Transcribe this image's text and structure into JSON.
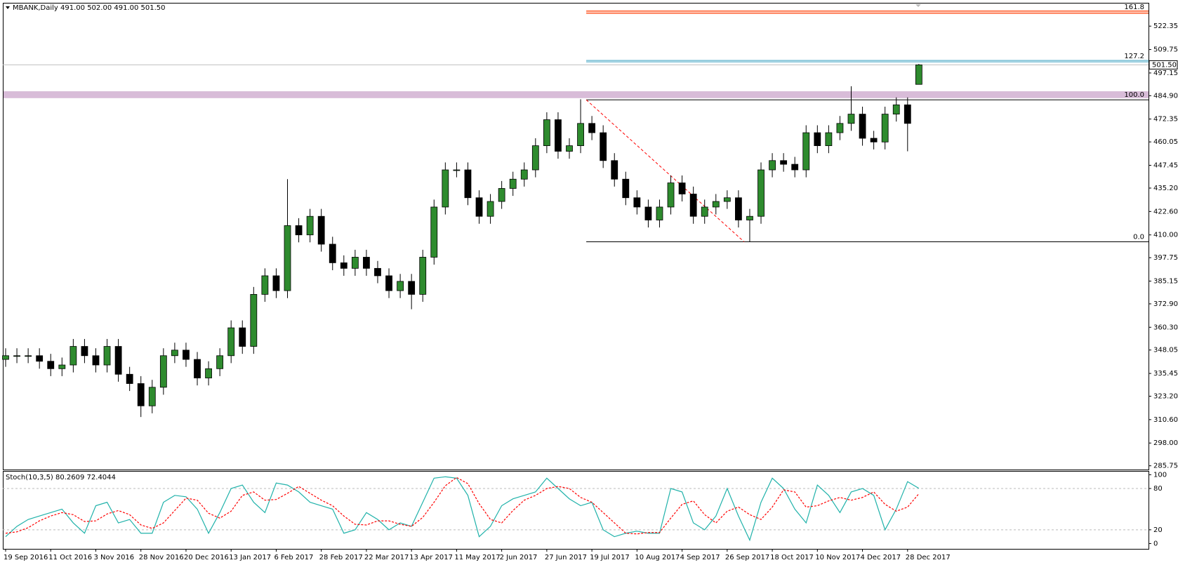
{
  "chart_data": [
    {
      "type": "candlestick",
      "title": "MBANK,Daily 491.00 502.00 491.00 501.50",
      "categories": [
        "19 Sep 2016",
        null,
        null,
        null,
        "11 Oct 2016",
        null,
        null,
        null,
        "3 Nov 2016",
        null,
        null,
        null,
        "28 Nov 2016",
        null,
        null,
        null,
        "20 Dec 2016",
        null,
        null,
        null,
        "13 Jan 2017",
        null,
        null,
        null,
        "6 Feb 2017",
        null,
        null,
        null,
        "28 Feb 2017",
        null,
        null,
        null,
        "22 Mar 2017",
        null,
        null,
        null,
        "13 Apr 2017",
        null,
        null,
        null,
        "11 May 2017",
        null,
        null,
        null,
        "2 Jun 2017",
        null,
        null,
        null,
        "27 Jun 2017",
        null,
        null,
        null,
        "19 Jul 2017",
        null,
        null,
        null,
        "10 Aug 2017",
        null,
        null,
        null,
        "4 Sep 2017",
        null,
        null,
        null,
        "26 Sep 2017",
        null,
        null,
        null,
        "18 Oct 2017",
        null,
        null,
        null,
        "10 Nov 2017",
        null,
        null,
        null,
        "4 Dec 2017",
        null,
        null,
        null,
        "28 Dec 2017",
        null
      ],
      "open": [
        343,
        345,
        345,
        345,
        342,
        338,
        340,
        350,
        345,
        340,
        350,
        335,
        330,
        318,
        328,
        345,
        348,
        343,
        333,
        338,
        345,
        360,
        350,
        378,
        388,
        380,
        415,
        410,
        420,
        405,
        395,
        392,
        398,
        392,
        388,
        380,
        385,
        378,
        398,
        425,
        445,
        445,
        430,
        420,
        428,
        435,
        440,
        445,
        458,
        472,
        455,
        458,
        470,
        465,
        450,
        440,
        430,
        425,
        418,
        425,
        438,
        432,
        420,
        425,
        428,
        430,
        418,
        420,
        445,
        450,
        448,
        445,
        465,
        458,
        465,
        470,
        475,
        462,
        460,
        475,
        480,
        491
      ],
      "high": [
        349,
        349,
        349,
        349,
        346,
        344,
        354,
        354,
        349,
        354,
        354,
        339,
        334,
        332,
        349,
        352,
        352,
        347,
        342,
        349,
        364,
        364,
        382,
        392,
        392,
        440,
        419,
        424,
        424,
        409,
        399,
        402,
        402,
        396,
        392,
        389,
        389,
        402,
        429,
        449,
        449,
        449,
        434,
        432,
        439,
        444,
        449,
        462,
        476,
        476,
        462,
        483,
        474,
        469,
        454,
        444,
        434,
        429,
        429,
        442,
        442,
        436,
        429,
        432,
        434,
        434,
        424,
        449,
        454,
        454,
        452,
        469,
        469,
        469,
        474,
        490,
        479,
        466,
        479,
        484,
        484,
        502
      ],
      "low": [
        339,
        341,
        341,
        338,
        334,
        334,
        336,
        341,
        336,
        336,
        331,
        326,
        312,
        314,
        324,
        341,
        339,
        329,
        329,
        334,
        341,
        346,
        346,
        374,
        376,
        376,
        406,
        406,
        401,
        391,
        388,
        388,
        388,
        384,
        376,
        376,
        370,
        374,
        394,
        421,
        441,
        426,
        416,
        416,
        424,
        431,
        436,
        441,
        454,
        451,
        451,
        454,
        461,
        446,
        436,
        426,
        421,
        414,
        414,
        421,
        428,
        416,
        416,
        421,
        424,
        414,
        406.3,
        416,
        441,
        444,
        441,
        441,
        454,
        454,
        461,
        466,
        458,
        456,
        456,
        471,
        455,
        491
      ],
      "close": [
        345,
        345,
        345,
        342,
        338,
        340,
        350,
        345,
        340,
        350,
        335,
        330,
        318,
        328,
        345,
        348,
        343,
        333,
        338,
        345,
        360,
        350,
        378,
        388,
        380,
        415,
        410,
        420,
        405,
        395,
        392,
        398,
        392,
        388,
        380,
        385,
        378,
        398,
        425,
        445,
        445,
        430,
        420,
        428,
        435,
        440,
        445,
        458,
        472,
        455,
        458,
        470,
        465,
        450,
        440,
        430,
        425,
        418,
        425,
        438,
        432,
        420,
        425,
        428,
        430,
        418,
        420,
        445,
        450,
        448,
        445,
        465,
        458,
        465,
        470,
        475,
        462,
        460,
        475,
        480,
        470,
        501.5
      ],
      "up_color": "#2e8b2e",
      "down_color": "#000000",
      "ylim": [
        283.73,
        534.9
      ],
      "yticks": [
        {
          "value": 522.35,
          "label": "522.35"
        },
        {
          "value": 509.75,
          "label": "509.75"
        },
        {
          "value": 497.15,
          "label": "497.15"
        },
        {
          "value": 484.9,
          "label": "484.90"
        },
        {
          "value": 472.35,
          "label": "472.35"
        },
        {
          "value": 460.05,
          "label": "460.05"
        },
        {
          "value": 447.45,
          "label": "447.45"
        },
        {
          "value": 435.2,
          "label": "435.20"
        },
        {
          "value": 422.6,
          "label": "422.60"
        },
        {
          "value": 410,
          "label": "410.00"
        },
        {
          "value": 397.75,
          "label": "397.75"
        },
        {
          "value": 385.15,
          "label": "385.15"
        },
        {
          "value": 372.9,
          "label": "372.90"
        },
        {
          "value": 360.3,
          "label": "360.30"
        },
        {
          "value": 348.05,
          "label": "348.05"
        },
        {
          "value": 335.45,
          "label": "335.45"
        },
        {
          "value": 323.2,
          "label": "323.20"
        },
        {
          "value": 310.6,
          "label": "310.60"
        },
        {
          "value": 298,
          "label": "298.00"
        },
        {
          "value": 285.75,
          "label": "285.75"
        }
      ],
      "last_price": {
        "value": 501.5,
        "label": "501.50"
      },
      "zones": [
        {
          "from": 483.6,
          "to": 487.3,
          "color": "#d8bcd8"
        }
      ],
      "trendline": {
        "x": [
          51.5,
          65.5
        ],
        "y": [
          482.7,
          406.3
        ],
        "color": "#ff0000"
      },
      "fibonacci": {
        "start": 51.5,
        "levels": [
          {
            "label": "161.8",
            "value": 529.9,
            "color": "#ff6a3d"
          },
          {
            "label": "127.2",
            "value": 503.5,
            "color": "#3aa0c0"
          },
          {
            "label": "100.0",
            "value": 482.7,
            "color": "#000000"
          },
          {
            "label": "0.0",
            "value": 406.3,
            "color": "#000000"
          }
        ]
      }
    },
    {
      "type": "line",
      "title": "Stoch(10,3,5) 80.2609 72.4044",
      "ylim": [
        -7.7,
        105.5
      ],
      "yticks": [
        100,
        80,
        20,
        0
      ],
      "levels": [
        80,
        20
      ],
      "series": [
        {
          "color": "#20b2aa",
          "values": [
            10,
            25,
            35,
            40,
            45,
            50,
            30,
            15,
            55,
            60,
            30,
            35,
            15,
            15,
            60,
            70,
            68,
            50,
            15,
            45,
            80,
            85,
            60,
            45,
            88,
            85,
            75,
            60,
            55,
            50,
            15,
            20,
            45,
            35,
            20,
            30,
            25,
            60,
            95,
            97,
            95,
            70,
            10,
            25,
            55,
            65,
            70,
            75,
            95,
            80,
            65,
            55,
            60,
            20,
            10,
            15,
            18,
            15,
            15,
            80,
            75,
            30,
            20,
            40,
            80,
            40,
            5,
            60,
            95,
            80,
            50,
            30,
            85,
            70,
            45,
            75,
            80,
            70,
            20,
            50,
            90,
            80.2609
          ]
        },
        {
          "color": "#ff0000",
          "dashed": true,
          "values": [
            15,
            17,
            23,
            33,
            40,
            45,
            42,
            32,
            33,
            43,
            48,
            42,
            27,
            22,
            30,
            48,
            66,
            63,
            44,
            37,
            47,
            70,
            75,
            63,
            64,
            73,
            83,
            73,
            63,
            55,
            40,
            28,
            27,
            33,
            33,
            28,
            25,
            38,
            60,
            84,
            96,
            87,
            58,
            35,
            30,
            48,
            63,
            70,
            80,
            83,
            80,
            67,
            60,
            45,
            30,
            15,
            14,
            16,
            16,
            37,
            57,
            62,
            42,
            30,
            47,
            53,
            42,
            35,
            53,
            78,
            75,
            53,
            55,
            62,
            67,
            63,
            67,
            75,
            57,
            47,
            53,
            72.4044
          ]
        }
      ]
    }
  ]
}
